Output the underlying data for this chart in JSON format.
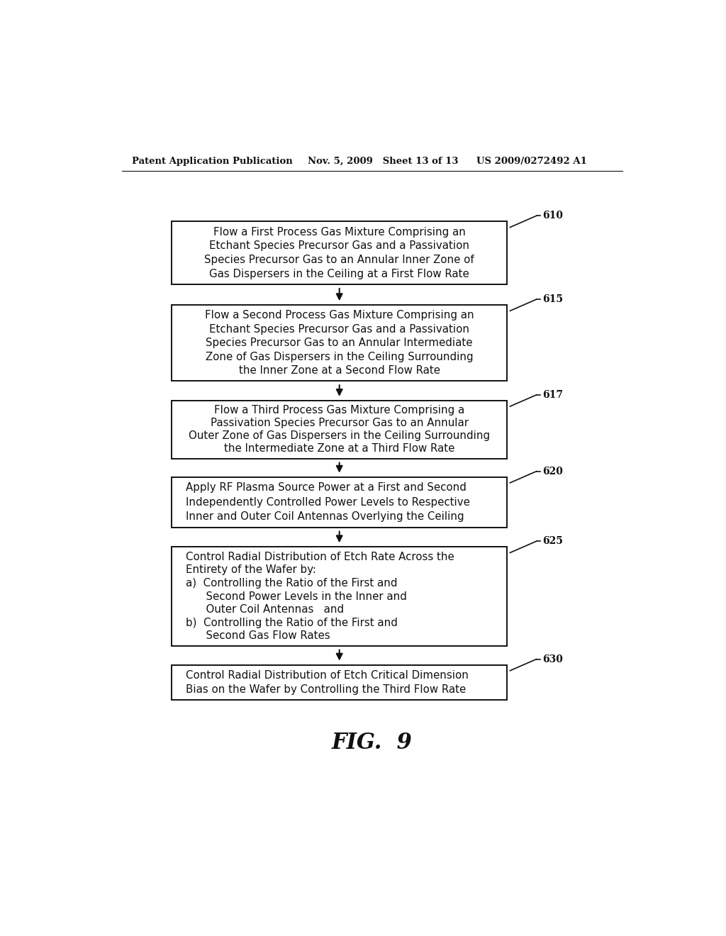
{
  "bg_color": "#ffffff",
  "header_left": "Patent Application Publication",
  "header_mid": "Nov. 5, 2009   Sheet 13 of 13",
  "header_right": "US 2009/0272492 A1",
  "figure_label": "FIG.  9",
  "boxes": [
    {
      "id": "610",
      "label": "610",
      "lines": [
        "Flow a First Process Gas Mixture Comprising an",
        "Etchant Species Precursor Gas and a Passivation",
        "Species Precursor Gas to an Annular Inner Zone of",
        "Gas Dispersers in the Ceiling at a First Flow Rate"
      ],
      "align": "center"
    },
    {
      "id": "615",
      "label": "615",
      "lines": [
        "Flow a Second Process Gas Mixture Comprising an",
        "Etchant Species Precursor Gas and a Passivation",
        "Species Precursor Gas to an Annular Intermediate",
        "Zone of Gas Dispersers in the Ceiling Surrounding",
        "the Inner Zone at a Second Flow Rate"
      ],
      "align": "center"
    },
    {
      "id": "617",
      "label": "617",
      "lines": [
        "Flow a Third Process Gas Mixture Comprising a",
        "Passivation Species Precursor Gas to an Annular",
        "Outer Zone of Gas Dispersers in the Ceiling Surrounding",
        "the Intermediate Zone at a Third Flow Rate"
      ],
      "align": "center"
    },
    {
      "id": "620",
      "label": "620",
      "lines": [
        "Apply RF Plasma Source Power at a First and Second",
        "Independently Controlled Power Levels to Respective",
        "Inner and Outer Coil Antennas Overlying the Ceiling"
      ],
      "align": "left"
    },
    {
      "id": "625",
      "label": "625",
      "lines": [
        "Control Radial Distribution of Etch Rate Across the",
        "Entirety of the Wafer by:",
        "a)  Controlling the Ratio of the First and",
        "      Second Power Levels in the Inner and",
        "      Outer Coil Antennas   and",
        "b)  Controlling the Ratio of the First and",
        "      Second Gas Flow Rates"
      ],
      "align": "left"
    },
    {
      "id": "630",
      "label": "630",
      "lines": [
        "Control Radial Distribution of Etch Critical Dimension",
        "Bias on the Wafer by Controlling the Third Flow Rate"
      ],
      "align": "left"
    }
  ]
}
